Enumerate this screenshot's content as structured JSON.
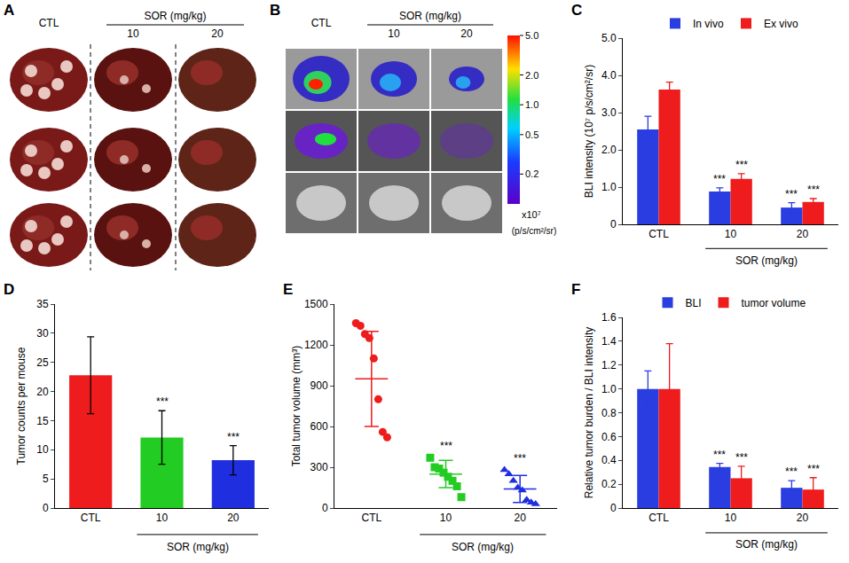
{
  "chart_data": [
    {
      "panel": "C",
      "type": "bar",
      "categories": [
        "CTL",
        "10",
        "20"
      ],
      "x_group_label": {
        "text": "SOR (mg/kg)",
        "categories": [
          "10",
          "20"
        ]
      },
      "series": [
        {
          "name": "In vivo",
          "color": "#2a3de0",
          "values": [
            2.55,
            0.88,
            0.45
          ],
          "errors": [
            0.35,
            0.1,
            0.13
          ]
        },
        {
          "name": "Ex vivo",
          "color": "#ee1c1c",
          "values": [
            3.62,
            1.22,
            0.6
          ],
          "errors": [
            0.2,
            0.14,
            0.09
          ]
        }
      ],
      "y_label": "BLI intensity (10⁷ p/s/cm²/sr)",
      "ylim": [
        0,
        5
      ],
      "yticks": [
        0,
        {
          "value": 1,
          "label": "1.0"
        },
        {
          "value": 2,
          "label": "2.0"
        },
        {
          "value": 3,
          "label": "3.0"
        },
        {
          "value": 4,
          "label": "4.0"
        },
        {
          "value": 5,
          "label": "5.0"
        }
      ],
      "legend": "top",
      "annotations": [
        {
          "category": "10",
          "series": "In vivo",
          "text": "***"
        },
        {
          "category": "10",
          "series": "Ex vivo",
          "text": "***"
        },
        {
          "category": "20",
          "series": "In vivo",
          "text": "***"
        },
        {
          "category": "20",
          "series": "Ex vivo",
          "text": "***"
        }
      ]
    },
    {
      "panel": "D",
      "type": "bar",
      "categories": [
        "CTL",
        "10",
        "20"
      ],
      "x_group_label": {
        "text": "SOR (mg/kg)",
        "categories": [
          "10",
          "20"
        ]
      },
      "values": [
        22.8,
        12.1,
        8.2
      ],
      "errors": [
        6.6,
        4.6,
        2.5
      ],
      "colors": [
        "#ee1c1c",
        "#22cc22",
        "#1f2fe0"
      ],
      "y_label": "Tumor counts per mouse",
      "ylim": [
        0,
        35
      ],
      "yticks": [
        0,
        5,
        10,
        15,
        20,
        25,
        30,
        35
      ],
      "annotations": [
        {
          "category": "10",
          "text": "***"
        },
        {
          "category": "20",
          "text": "***"
        }
      ]
    },
    {
      "panel": "E",
      "type": "scatter",
      "categories": [
        "CTL",
        "10",
        "20"
      ],
      "x_group_label": {
        "text": "SOR (mg/kg)",
        "categories": [
          "10",
          "20"
        ]
      },
      "groups": [
        {
          "category": "CTL",
          "color": "#ee1c1c",
          "marker": "circle",
          "values": [
            1360,
            1340,
            1280,
            1250,
            1100,
            800,
            560,
            520
          ],
          "mean": 950,
          "sd": 350
        },
        {
          "category": "10",
          "color": "#22cc22",
          "marker": "square",
          "values": [
            370,
            300,
            290,
            260,
            230,
            200,
            160,
            80
          ],
          "mean": 250,
          "sd": 100
        },
        {
          "category": "20",
          "color": "#1f2fe0",
          "marker": "triangle-up",
          "values": [
            280,
            250,
            200,
            150,
            130,
            60,
            40,
            30
          ],
          "mean": 140,
          "sd": 100
        }
      ],
      "y_label": "Total tumor volume (mm³)",
      "ylim": [
        0,
        1500
      ],
      "yticks": [
        0,
        300,
        600,
        900,
        1200,
        1500
      ],
      "annotations": [
        {
          "category": "10",
          "text": "***"
        },
        {
          "category": "20",
          "text": "***"
        }
      ]
    },
    {
      "panel": "F",
      "type": "bar",
      "categories": [
        "CTL",
        "10",
        "20"
      ],
      "x_group_label": {
        "text": "SOR (mg/kg)",
        "categories": [
          "10",
          "20"
        ]
      },
      "series": [
        {
          "name": "BLI",
          "color": "#2a3de0",
          "values": [
            1.0,
            0.345,
            0.17
          ],
          "errors": [
            0.15,
            0.03,
            0.06
          ]
        },
        {
          "name": "tumor volume",
          "color": "#ee1c1c",
          "values": [
            1.0,
            0.25,
            0.155
          ],
          "errors": [
            0.38,
            0.1,
            0.1
          ]
        }
      ],
      "y_label": "Relative tumor burden / BLI intensity",
      "ylim": [
        0,
        1.6
      ],
      "yticks": [
        0,
        0.2,
        0.4,
        0.6,
        0.8,
        {
          "value": 1,
          "label": "1.0"
        },
        1.2,
        1.4,
        1.6
      ],
      "legend": "top",
      "annotations": [
        {
          "category": "10",
          "series": "BLI",
          "text": "***"
        },
        {
          "category": "10",
          "series": "tumor volume",
          "text": "***"
        },
        {
          "category": "20",
          "series": "BLI",
          "text": "***"
        },
        {
          "category": "20",
          "series": "tumor volume",
          "text": "***"
        }
      ]
    }
  ],
  "image_panels": [
    {
      "panel": "A",
      "columns": [
        "CTL",
        "10",
        "20"
      ],
      "group_label": "SOR (mg/kg)",
      "group_columns": [
        "10",
        "20"
      ]
    },
    {
      "panel": "B",
      "columns": [
        "CTL",
        "10",
        "20"
      ],
      "group_label": "SOR (mg/kg)",
      "group_columns": [
        "10",
        "20"
      ],
      "colorbar": {
        "range": [
          0.1,
          5
        ],
        "ticks": [
          {
            "value": 5,
            "label": "5.0"
          },
          {
            "value": 2,
            "label": "2.0"
          },
          {
            "value": 1,
            "label": "1.0"
          },
          0.5,
          0.2
        ],
        "multiplier": "x10⁷",
        "label": "(p/s/cm²/sr)"
      }
    }
  ]
}
